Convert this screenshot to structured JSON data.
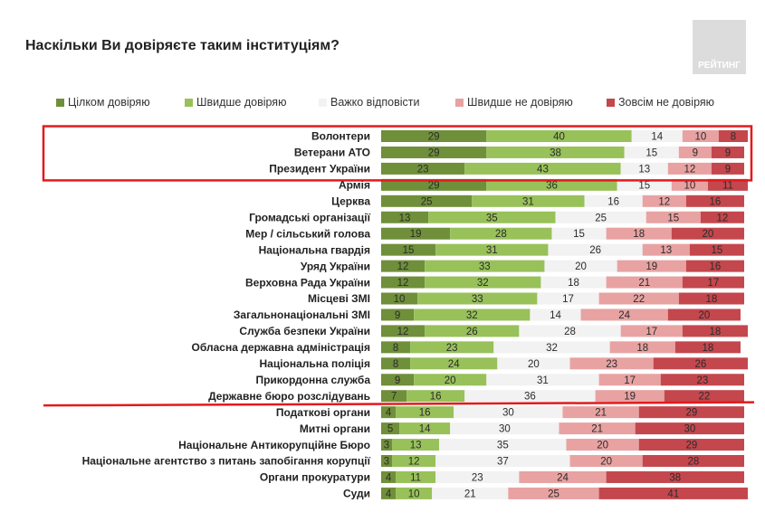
{
  "chart_data": {
    "type": "bar",
    "orientation": "horizontal",
    "stacked": true,
    "title": "Наскільки Ви довіряєте таким інституціям?",
    "logo_text": "РЕЙТИНГ",
    "legend_placement": "top",
    "xlim": [
      0,
      100
    ],
    "categories": [
      "Волонтери",
      "Ветерани АТО",
      "Президент України",
      "Армія",
      "Церква",
      "Громадські організації",
      "Мер / сільський голова",
      "Національна гвардія",
      "Уряд України",
      "Верховна Рада України",
      "Місцеві ЗМІ",
      "Загальнонаціональні ЗМІ",
      "Служба безпеки України",
      "Обласна державна адміністрація",
      "Національна поліція",
      "Прикордонна служба",
      "Державне бюро розслідувань",
      "Податкові органи",
      "Митні органи",
      "Національне Антикорупційне Бюро",
      "Національне агентство з питань запобігання корупції",
      "Органи прокуратури",
      "Суди"
    ],
    "series": [
      {
        "name": "Цілком довіряю",
        "color": "#6f8f3a",
        "values": [
          29,
          29,
          23,
          29,
          25,
          13,
          19,
          15,
          12,
          12,
          10,
          9,
          12,
          8,
          8,
          9,
          7,
          4,
          5,
          3,
          3,
          4,
          4
        ]
      },
      {
        "name": "Швидше довіряю",
        "color": "#98c15a",
        "values": [
          40,
          38,
          43,
          36,
          31,
          35,
          28,
          31,
          33,
          32,
          33,
          32,
          26,
          23,
          24,
          20,
          16,
          16,
          14,
          13,
          12,
          11,
          10
        ]
      },
      {
        "name": "Важко відповісти",
        "color": "#f2f2f2",
        "values": [
          14,
          15,
          13,
          15,
          16,
          25,
          15,
          26,
          20,
          18,
          17,
          14,
          28,
          32,
          20,
          31,
          36,
          30,
          30,
          35,
          37,
          23,
          21
        ]
      },
      {
        "name": "Швидше не довіряю",
        "color": "#e8a2a2",
        "values": [
          10,
          9,
          12,
          10,
          12,
          15,
          18,
          13,
          19,
          21,
          22,
          24,
          17,
          18,
          23,
          17,
          19,
          21,
          21,
          20,
          20,
          24,
          25
        ]
      },
      {
        "name": "Зовсім не довіряю",
        "color": "#c4474d",
        "values": [
          8,
          9,
          9,
          11,
          16,
          12,
          20,
          15,
          16,
          17,
          18,
          20,
          18,
          18,
          26,
          23,
          22,
          29,
          30,
          29,
          28,
          38,
          41
        ]
      }
    ],
    "annotations": [
      {
        "type": "box",
        "rows": [
          "Волонтери",
          "Президент України"
        ],
        "color": "#e31a1c"
      },
      {
        "type": "separator-line",
        "after_row": "Державне бюро розслідувань",
        "color": "#e31a1c"
      }
    ]
  }
}
